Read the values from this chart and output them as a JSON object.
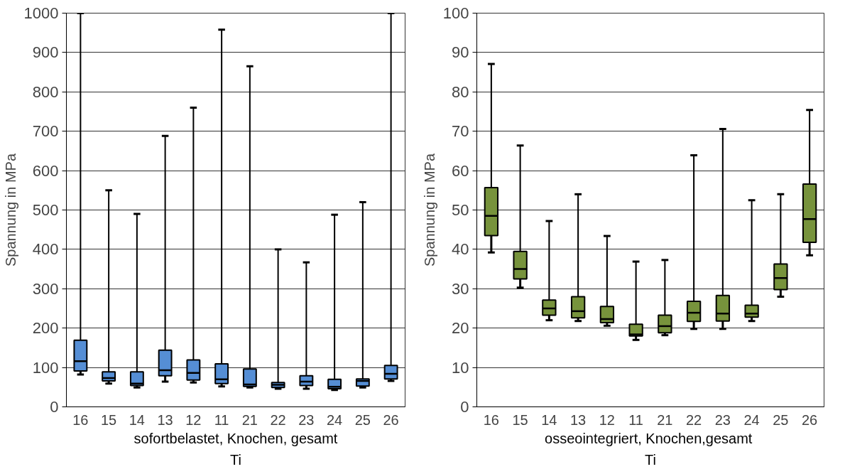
{
  "chart_data": [
    {
      "type": "box",
      "ylabel": "Spannung in MPa",
      "xlabel": "Ti",
      "annotations": [
        "sofortbelastet, Knochen, gesamt"
      ],
      "categories": [
        "16",
        "15",
        "14",
        "13",
        "12",
        "11",
        "21",
        "22",
        "23",
        "24",
        "25",
        "26"
      ],
      "color": "#558ed5",
      "ylim": [
        0,
        1000
      ],
      "yticks": [
        0,
        100,
        200,
        300,
        400,
        500,
        600,
        700,
        800,
        900,
        1000
      ],
      "grid": "y",
      "boxes": [
        {
          "low": 82,
          "q1": 91,
          "median": 116,
          "q3": 169,
          "high": 1000
        },
        {
          "low": 59,
          "q1": 66,
          "median": 73,
          "q3": 89,
          "high": 550
        },
        {
          "low": 49,
          "q1": 54,
          "median": 59,
          "q3": 89,
          "high": 490
        },
        {
          "low": 64,
          "q1": 79,
          "median": 93,
          "q3": 144,
          "high": 688
        },
        {
          "low": 62,
          "q1": 68,
          "median": 86,
          "q3": 119,
          "high": 760
        },
        {
          "low": 52,
          "q1": 59,
          "median": 70,
          "q3": 109,
          "high": 958
        },
        {
          "low": 49,
          "q1": 52,
          "median": 57,
          "q3": 96,
          "high": 865
        },
        {
          "low": 46,
          "q1": 49,
          "median": 56,
          "q3": 62,
          "high": 400
        },
        {
          "low": 46,
          "q1": 54,
          "median": 64,
          "q3": 79,
          "high": 367
        },
        {
          "low": 43,
          "q1": 46,
          "median": 51,
          "q3": 70,
          "high": 488
        },
        {
          "low": 49,
          "q1": 53,
          "median": 66,
          "q3": 71,
          "high": 520
        },
        {
          "low": 66,
          "q1": 71,
          "median": 84,
          "q3": 105,
          "high": 1000
        }
      ]
    },
    {
      "type": "box",
      "ylabel": "Spannung in MPa",
      "xlabel": "Ti",
      "annotations": [
        "osseointegriert,  Knochen,gesamt"
      ],
      "categories": [
        "16",
        "15",
        "14",
        "13",
        "12",
        "11",
        "21",
        "22",
        "23",
        "24",
        "25",
        "26"
      ],
      "color": "#77933c",
      "ylim": [
        0,
        100
      ],
      "yticks": [
        0,
        10,
        20,
        30,
        40,
        50,
        60,
        70,
        80,
        90,
        100
      ],
      "grid": "y",
      "boxes": [
        {
          "low": 39.2,
          "q1": 43.5,
          "median": 48.5,
          "q3": 55.7,
          "high": 87.1
        },
        {
          "low": 30.3,
          "q1": 32.5,
          "median": 35,
          "q3": 39.5,
          "high": 66.4
        },
        {
          "low": 22,
          "q1": 23.3,
          "median": 25,
          "q3": 27.1,
          "high": 47.2
        },
        {
          "low": 21.8,
          "q1": 22.6,
          "median": 24.3,
          "q3": 28,
          "high": 54
        },
        {
          "low": 20.6,
          "q1": 21.4,
          "median": 22.3,
          "q3": 25.5,
          "high": 43.4
        },
        {
          "low": 17,
          "q1": 18,
          "median": 18.4,
          "q3": 21,
          "high": 36.9
        },
        {
          "low": 18.2,
          "q1": 18.8,
          "median": 20.5,
          "q3": 23.3,
          "high": 37.3
        },
        {
          "low": 19.8,
          "q1": 21.7,
          "median": 23.9,
          "q3": 26.8,
          "high": 63.9
        },
        {
          "low": 19.8,
          "q1": 21.8,
          "median": 23.7,
          "q3": 28.3,
          "high": 70.6
        },
        {
          "low": 21.8,
          "q1": 22.8,
          "median": 23.7,
          "q3": 25.8,
          "high": 52.5
        },
        {
          "low": 28,
          "q1": 29.8,
          "median": 32.7,
          "q3": 36.3,
          "high": 54
        },
        {
          "low": 38.5,
          "q1": 41.8,
          "median": 47.7,
          "q3": 56.6,
          "high": 75.4
        }
      ]
    }
  ]
}
